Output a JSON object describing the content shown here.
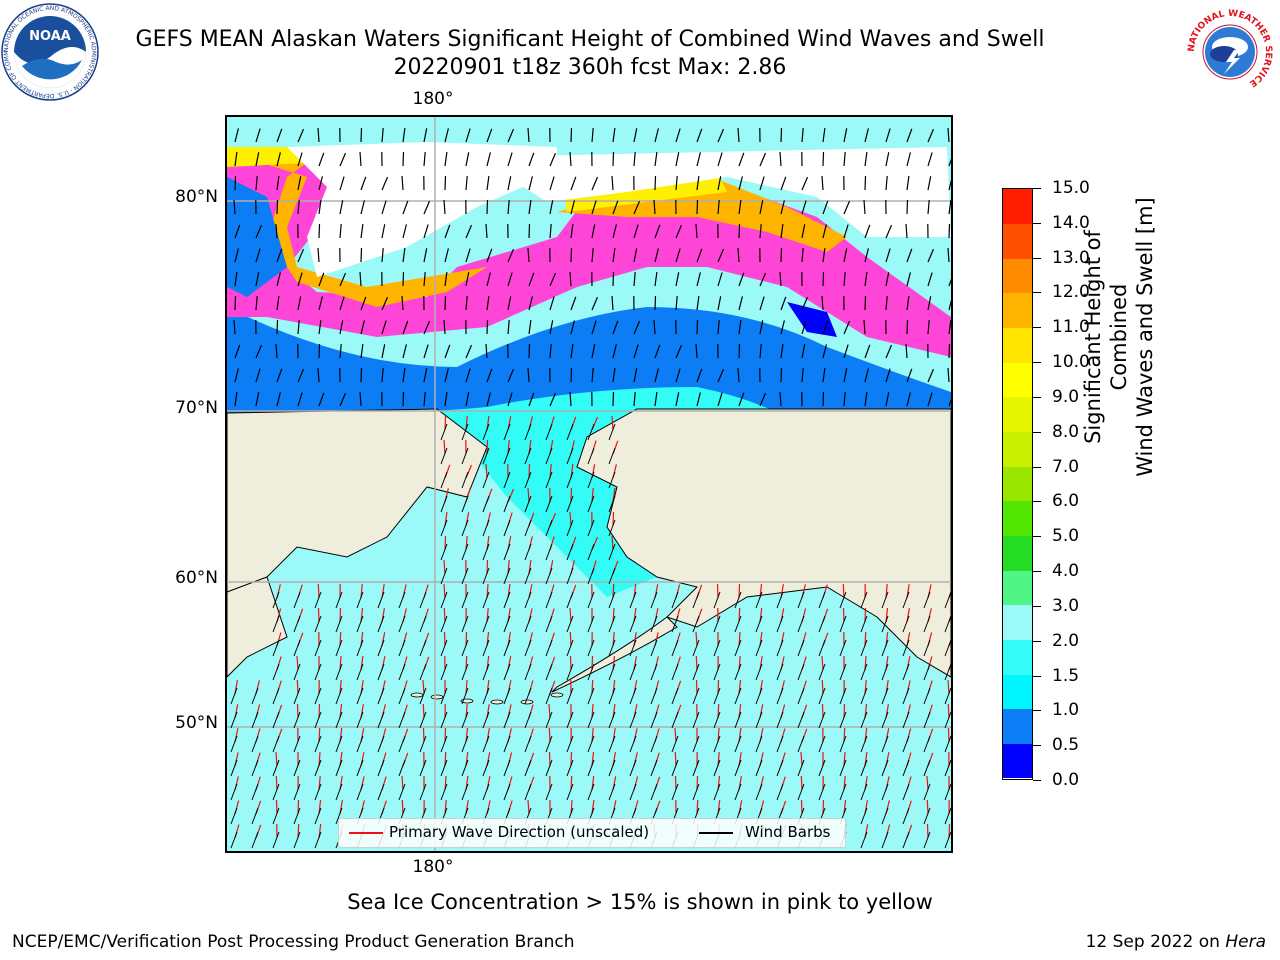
{
  "header": {
    "title_line1": "GEFS MEAN Alaskan Waters Significant Height of Combined Wind Waves and Swell",
    "title_line2": "20220901 t18z 360h fcst   Max: 2.86"
  },
  "logos": {
    "noaa": {
      "text": "NOAA",
      "ring_text": "NATIONAL OCEANIC AND ATMOSPHERIC ADMINISTRATION · U.S. DEPARTMENT OF COMMERCE"
    },
    "nws": {
      "ring_text": "NATIONAL WEATHER SERVICE"
    }
  },
  "map": {
    "lat_labels": [
      "80°N",
      "70°N",
      "60°N",
      "50°N"
    ],
    "lon_label_top": "180°",
    "lon_label_bottom": "180°",
    "colors": {
      "land": "#efeedd",
      "ocean_light": "#9bfaf8",
      "ocean_mid": "#33fbf6",
      "ocean_dark": "#00f0ff",
      "blue": "#0d7df5",
      "deep_blue": "#0000ff",
      "ice_pink": "#ff45d8",
      "ice_orange": "#ffb400",
      "ice_yellow": "#ffef00",
      "wave_arrow": "#ee1111",
      "wind_barb": "#000000"
    }
  },
  "legend": {
    "wave_label": "Primary Wave Direction (unscaled)",
    "wind_label": "Wind Barbs"
  },
  "colorbar": {
    "title_line1": "Significant Height of Combined",
    "title_line2": "Wind Waves and Swell [m]",
    "ticks": [
      "0.0",
      "0.5",
      "1.0",
      "1.5",
      "2.0",
      "3.0",
      "4.0",
      "5.0",
      "6.0",
      "7.0",
      "8.0",
      "9.0",
      "10.0",
      "11.0",
      "12.0",
      "13.0",
      "14.0",
      "15.0"
    ],
    "colors": [
      "#0000ff",
      "#0d7df5",
      "#00f5ff",
      "#33fbf6",
      "#9bfaf8",
      "#50f585",
      "#23dc23",
      "#52e600",
      "#9be600",
      "#c8f000",
      "#e6f500",
      "#ffff00",
      "#ffe600",
      "#ffb400",
      "#ff8c00",
      "#ff5000",
      "#ff1e00"
    ]
  },
  "caption": "Sea Ice Concentration > 15% is shown in pink to yellow",
  "footer": {
    "left": "NCEP/EMC/Verification Post Processing Product Generation Branch",
    "right_prefix": "12 Sep 2022 on ",
    "right_host": "Hera"
  }
}
